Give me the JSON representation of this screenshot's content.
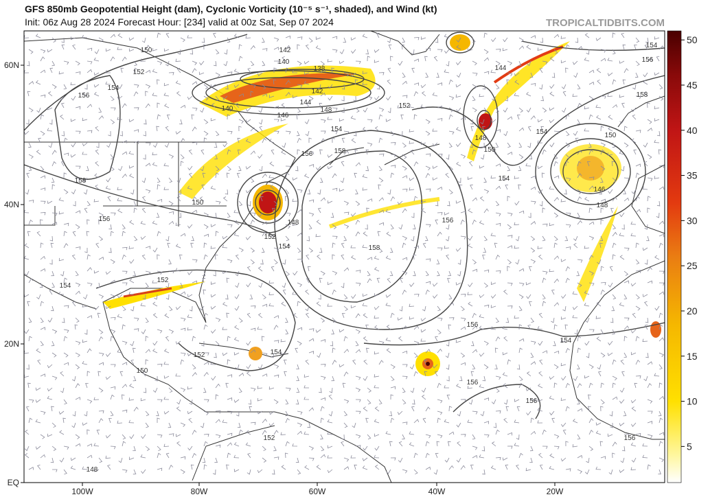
{
  "header": {
    "title": "GFS 850mb Geopotential Height (dam), Cyclonic Vorticity (10⁻⁵ s⁻¹, shaded), and Wind (kt)",
    "subtitle": "Init: 06z Aug 28 2024   Forecast Hour: [234]   valid at 00z Sat, Sep 07 2024",
    "credit": "TROPICALTIDBITS.COM"
  },
  "latitude_labels": [
    "60N",
    "40N",
    "20N",
    "EQ"
  ],
  "longitude_labels": [
    "100W",
    "80W",
    "60W",
    "40W",
    "20W"
  ],
  "colorbar": {
    "range": [
      1,
      51
    ],
    "ticks": [
      5,
      10,
      15,
      20,
      25,
      30,
      35,
      40,
      45,
      50
    ]
  },
  "contour_labels": [
    "150",
    "152",
    "154",
    "156",
    "158",
    "142",
    "140",
    "138",
    "142",
    "144",
    "148",
    "140",
    "146",
    "154",
    "156",
    "158",
    "152",
    "150",
    "156",
    "152",
    "148",
    "154",
    "152",
    "154",
    "158",
    "156",
    "144",
    "148",
    "150",
    "154",
    "154",
    "154",
    "156",
    "158",
    "150",
    "146",
    "148",
    "156",
    "154",
    "152",
    "154",
    "150",
    "156",
    "156",
    "152",
    "156",
    "148"
  ]
}
